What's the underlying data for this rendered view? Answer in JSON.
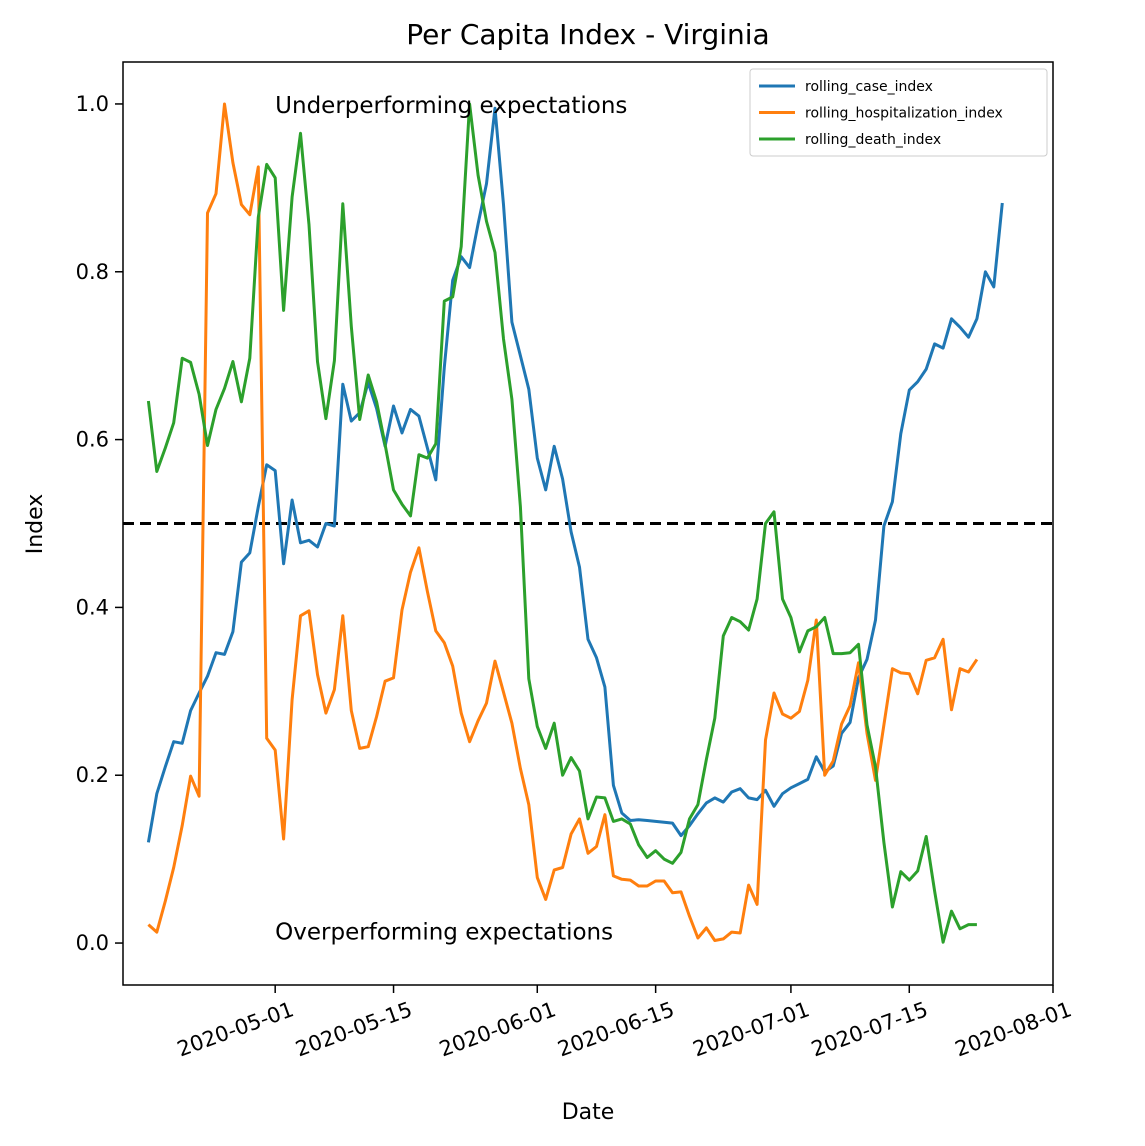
{
  "chart_data": {
    "type": "line",
    "title": "Per Capita Index - Virginia",
    "xlabel": "Date",
    "ylabel": "Index",
    "x_start": "2020-04-16",
    "x_end": "2020-07-25",
    "xlim": [
      "2020-04-13",
      "2020-08-01"
    ],
    "ylim": [
      -0.05,
      1.05
    ],
    "xticks": [
      "2020-05-01",
      "2020-05-15",
      "2020-06-01",
      "2020-06-15",
      "2020-07-01",
      "2020-07-15",
      "2020-08-01"
    ],
    "yticks": [
      0.0,
      0.2,
      0.4,
      0.6,
      0.8,
      1.0
    ],
    "ytick_labels": [
      "0.0",
      "0.2",
      "0.4",
      "0.6",
      "0.8",
      "1.0"
    ],
    "reference_line": {
      "y": 0.5,
      "style": "dashed",
      "color": "#000000"
    },
    "annotations": [
      {
        "text": "Underperforming expectations",
        "x": "2020-05-01",
        "y": 1.0
      },
      {
        "text": "Overperforming expectations",
        "x": "2020-05-01",
        "y": 0.015
      }
    ],
    "legend": {
      "position": "upper right"
    },
    "grid": false,
    "series": [
      {
        "name": "rolling_case_index",
        "color": "#1f77b4",
        "values": [
          0.12,
          0.178,
          0.21,
          0.24,
          0.238,
          0.277,
          0.298,
          0.318,
          0.346,
          0.344,
          0.371,
          0.454,
          0.465,
          0.52,
          0.57,
          0.563,
          0.452,
          0.528,
          0.477,
          0.48,
          0.472,
          0.5,
          0.497,
          0.666,
          0.622,
          0.632,
          0.668,
          0.637,
          0.592,
          0.64,
          0.608,
          0.636,
          0.628,
          0.59,
          0.552,
          0.686,
          0.79,
          0.818,
          0.805,
          0.857,
          0.905,
          0.995,
          0.88,
          0.74,
          0.7,
          0.66,
          0.578,
          0.54,
          0.592,
          0.553,
          0.49,
          0.448,
          0.362,
          0.34,
          0.305,
          0.188,
          0.155,
          0.146,
          0.147,
          0.146,
          0.145,
          0.144,
          0.143,
          0.128,
          0.14,
          0.154,
          0.167,
          0.173,
          0.168,
          0.18,
          0.184,
          0.173,
          0.171,
          0.182,
          0.163,
          0.178,
          0.185,
          0.19,
          0.195,
          0.222,
          0.204,
          0.211,
          0.25,
          0.263,
          0.316,
          0.338,
          0.385,
          0.497,
          0.526,
          0.607,
          0.659,
          0.669,
          0.684,
          0.714,
          0.709,
          0.744,
          0.734,
          0.722,
          0.744,
          0.8,
          0.782,
          0.882
        ]
      },
      {
        "name": "rolling_hospitalization_index",
        "color": "#ff7f0e",
        "values": [
          0.022,
          0.013,
          0.05,
          0.09,
          0.14,
          0.199,
          0.175,
          0.87,
          0.893,
          1.0,
          0.93,
          0.88,
          0.868,
          0.925,
          0.244,
          0.23,
          0.124,
          0.29,
          0.39,
          0.396,
          0.32,
          0.274,
          0.302,
          0.39,
          0.277,
          0.232,
          0.234,
          0.27,
          0.312,
          0.316,
          0.397,
          0.442,
          0.471,
          0.419,
          0.372,
          0.358,
          0.33,
          0.274,
          0.24,
          0.265,
          0.286,
          0.336,
          0.299,
          0.262,
          0.208,
          0.165,
          0.078,
          0.052,
          0.087,
          0.09,
          0.13,
          0.148,
          0.107,
          0.115,
          0.153,
          0.08,
          0.076,
          0.075,
          0.068,
          0.068,
          0.074,
          0.074,
          0.06,
          0.061,
          0.032,
          0.006,
          0.018,
          0.003,
          0.005,
          0.013,
          0.012,
          0.069,
          0.046,
          0.242,
          0.298,
          0.273,
          0.268,
          0.276,
          0.313,
          0.385,
          0.2,
          0.217,
          0.261,
          0.283,
          0.334,
          0.25,
          0.194,
          0.26,
          0.327,
          0.322,
          0.321,
          0.297,
          0.337,
          0.34,
          0.362,
          0.278,
          0.327,
          0.323,
          0.338
        ]
      },
      {
        "name": "rolling_death_index",
        "color": "#2ca02c",
        "values": [
          0.646,
          0.562,
          0.59,
          0.62,
          0.697,
          0.692,
          0.654,
          0.593,
          0.636,
          0.661,
          0.693,
          0.645,
          0.697,
          0.865,
          0.928,
          0.912,
          0.754,
          0.889,
          0.965,
          0.856,
          0.693,
          0.625,
          0.694,
          0.881,
          0.735,
          0.624,
          0.677,
          0.645,
          0.594,
          0.54,
          0.523,
          0.509,
          0.582,
          0.578,
          0.595,
          0.765,
          0.77,
          0.83,
          1.0,
          0.915,
          0.86,
          0.823,
          0.72,
          0.648,
          0.52,
          0.315,
          0.258,
          0.232,
          0.262,
          0.2,
          0.221,
          0.205,
          0.148,
          0.174,
          0.173,
          0.145,
          0.148,
          0.142,
          0.117,
          0.102,
          0.11,
          0.1,
          0.095,
          0.108,
          0.148,
          0.165,
          0.219,
          0.268,
          0.366,
          0.388,
          0.383,
          0.373,
          0.41,
          0.5,
          0.514,
          0.41,
          0.388,
          0.347,
          0.372,
          0.377,
          0.388,
          0.345,
          0.345,
          0.346,
          0.356,
          0.26,
          0.21,
          0.12,
          0.043,
          0.085,
          0.075,
          0.086,
          0.127,
          0.062,
          0.001,
          0.038,
          0.017,
          0.022,
          0.022
        ]
      }
    ]
  }
}
